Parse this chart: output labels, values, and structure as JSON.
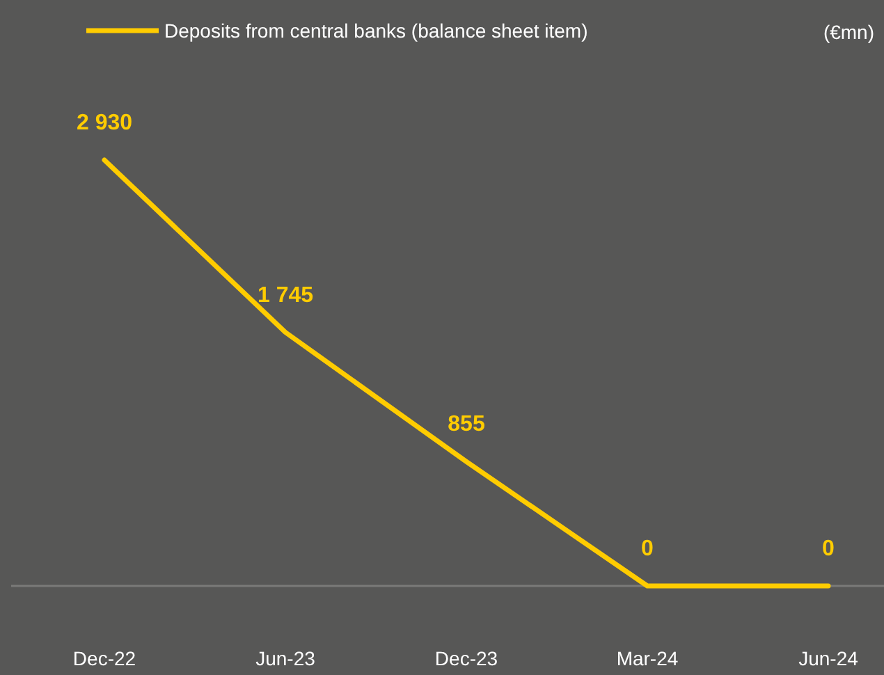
{
  "chart_data": {
    "type": "line",
    "categories": [
      "Dec-22",
      "Jun-23",
      "Dec-23",
      "Mar-24",
      "Jun-24"
    ],
    "series": [
      {
        "name": "Deposits from central banks (balance sheet item)",
        "color": "#ffcc00",
        "values": [
          2930,
          1745,
          855,
          0,
          0
        ],
        "value_labels": [
          "2 930",
          "1 745",
          "855",
          "0",
          "0"
        ]
      }
    ],
    "legend": "top left",
    "annotations": [
      "(€mn)"
    ]
  }
}
